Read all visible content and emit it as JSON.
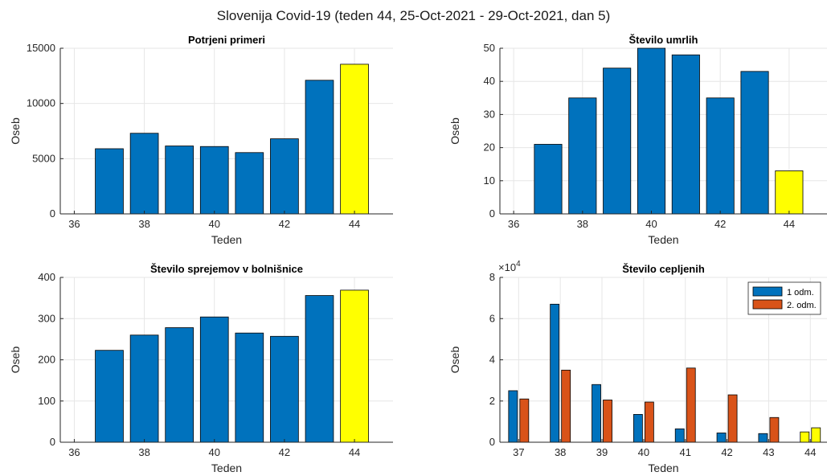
{
  "figure": {
    "title": "Slovenija Covid-19 (teden 44, 25-Oct-2021 - 29-Oct-2021, dan 5)"
  },
  "colors": {
    "blue": "#0072BD",
    "orange": "#D95319",
    "yellow": "#FFFF00"
  },
  "chart_data": [
    {
      "type": "bar",
      "title": "Potrjeni primeri",
      "xlabel": "Teden",
      "ylabel": "Oseb",
      "x": [
        37,
        38,
        39,
        40,
        41,
        42,
        43,
        44
      ],
      "values": [
        5900,
        7300,
        6150,
        6100,
        5550,
        6800,
        12100,
        13550
      ],
      "highlight_last": true,
      "xlim": [
        35.6,
        45.1
      ],
      "ylim": [
        0,
        15000
      ],
      "xticks": [
        36,
        38,
        40,
        42,
        44
      ],
      "yticks": [
        0,
        5000,
        10000,
        15000
      ],
      "grid": true
    },
    {
      "type": "bar",
      "title": "Število umrlih",
      "xlabel": "Teden",
      "ylabel": "Oseb",
      "x": [
        37,
        38,
        39,
        40,
        41,
        42,
        43,
        44
      ],
      "values": [
        21,
        35,
        44,
        50,
        48,
        35,
        43,
        13
      ],
      "highlight_last": true,
      "xlim": [
        35.6,
        45.1
      ],
      "ylim": [
        0,
        50
      ],
      "xticks": [
        36,
        38,
        40,
        42,
        44
      ],
      "yticks": [
        0,
        10,
        20,
        30,
        40,
        50
      ],
      "grid": true
    },
    {
      "type": "bar",
      "title": "Število sprejemov v bolnišnice",
      "xlabel": "Teden",
      "ylabel": "Oseb",
      "x": [
        37,
        38,
        39,
        40,
        41,
        42,
        43,
        44
      ],
      "values": [
        223,
        260,
        278,
        304,
        265,
        257,
        356,
        369
      ],
      "highlight_last": true,
      "xlim": [
        35.6,
        45.1
      ],
      "ylim": [
        0,
        400
      ],
      "xticks": [
        36,
        38,
        40,
        42,
        44
      ],
      "yticks": [
        0,
        100,
        200,
        300,
        400
      ],
      "grid": true
    },
    {
      "type": "bar",
      "title": "Število cepljenih",
      "xlabel": "Teden",
      "ylabel": "Oseb",
      "exponent_label": "×10",
      "exponent_power": "4",
      "x": [
        37,
        38,
        39,
        40,
        41,
        42,
        43,
        44
      ],
      "series": [
        {
          "name": "1 odm.",
          "values": [
            2.5,
            6.7,
            2.8,
            1.35,
            0.65,
            0.45,
            0.42,
            0.5
          ]
        },
        {
          "name": "2. odm.",
          "values": [
            2.1,
            3.5,
            2.05,
            1.95,
            3.6,
            2.3,
            1.2,
            0.7
          ]
        }
      ],
      "highlight_last": true,
      "xlim": [
        36.55,
        44.4
      ],
      "ylim": [
        0,
        8
      ],
      "xticks": [
        37,
        38,
        39,
        40,
        41,
        42,
        43,
        44
      ],
      "yticks": [
        0,
        2,
        4,
        6,
        8
      ],
      "legend": "top-right",
      "grid": true
    }
  ]
}
